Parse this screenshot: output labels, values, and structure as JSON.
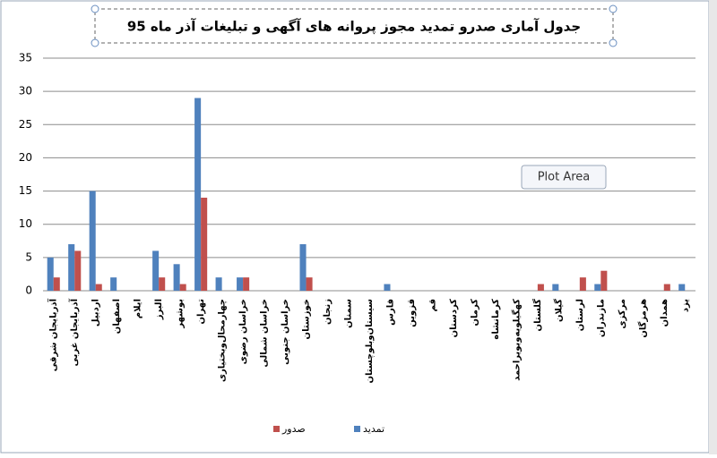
{
  "chart_data": {
    "type": "bar",
    "title": "جدول آماری صدرو تمدید  مجوز پروانه های آگهی و تبلیغات آذر ماه 95",
    "tooltip": "Plot Area",
    "categories": [
      "آذربایجان شرقی",
      "آذربایجان غربی",
      "اردبیل",
      "اصفهان",
      "ایلام",
      "البرز",
      "بوشهر",
      "تهران",
      "چهارمحال‌وبختیاری",
      "خراسان رضوی",
      "خراسان شمالی",
      "خراسان جنوبی",
      "خوزستان",
      "زنجان",
      "سمنان",
      "سیستان‌وبلوچستان",
      "فارس",
      "قزوین",
      "قم",
      "کردستان",
      "کرمان",
      "کرمانشاه",
      "کهگیلویه‌وبویراحمد",
      "گلستان",
      "گیلان",
      "لرستان",
      "مازندران",
      "مرکزی",
      "هرمزگان",
      "همدان",
      "یزد"
    ],
    "series": [
      {
        "name": "تمدید",
        "color": "#4f81bd",
        "values": [
          5,
          7,
          15,
          2,
          0,
          6,
          4,
          29,
          2,
          2,
          0,
          0,
          7,
          0,
          0,
          0,
          1,
          0,
          0,
          0,
          0,
          0,
          0,
          0,
          1,
          0,
          1,
          0,
          0,
          0,
          1
        ]
      },
      {
        "name": "صدور",
        "color": "#c0504d",
        "values": [
          2,
          6,
          1,
          0,
          0,
          2,
          1,
          14,
          0,
          2,
          0,
          0,
          2,
          0,
          0,
          0,
          0,
          0,
          0,
          0,
          0,
          0,
          0,
          1,
          0,
          2,
          3,
          0,
          0,
          1,
          0
        ]
      }
    ],
    "ylim": [
      0,
      35
    ],
    "yticks": [
      0,
      5,
      10,
      15,
      20,
      25,
      30,
      35
    ],
    "grid": true,
    "legend": "bottom"
  }
}
